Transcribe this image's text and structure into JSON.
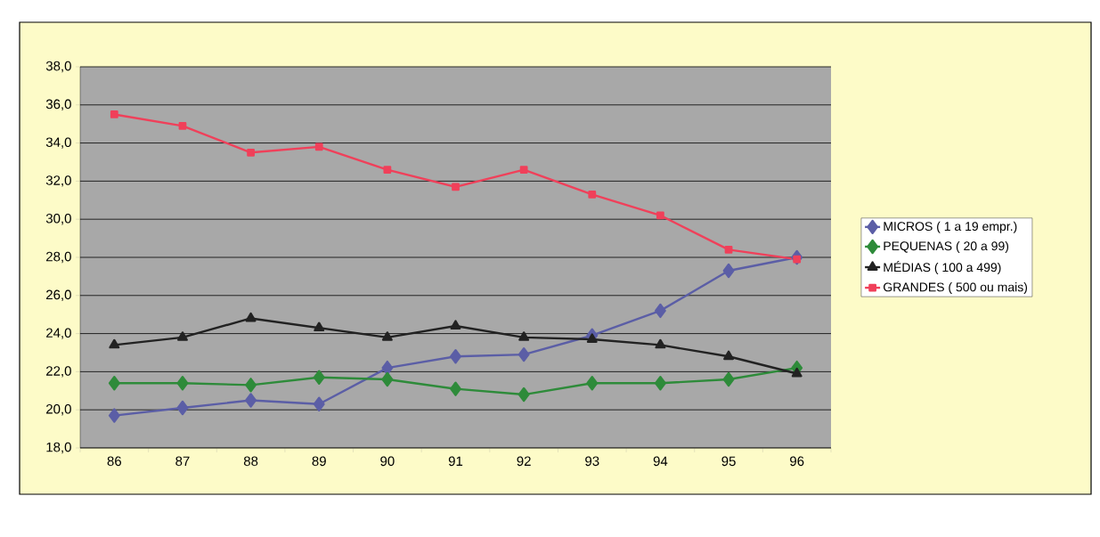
{
  "chart_data": {
    "type": "line",
    "categories": [
      "86",
      "87",
      "88",
      "89",
      "90",
      "91",
      "92",
      "93",
      "94",
      "95",
      "96"
    ],
    "series": [
      {
        "name": "MICROS ( 1 a 19 empr.)",
        "color": "#5b5ea6",
        "marker": "diamond",
        "values": [
          19.7,
          20.1,
          20.5,
          20.3,
          22.2,
          22.8,
          22.9,
          23.9,
          25.2,
          27.3,
          28.0
        ]
      },
      {
        "name": "PEQUENAS ( 20 a 99)",
        "color": "#2e8b3a",
        "marker": "diamond",
        "values": [
          21.4,
          21.4,
          21.3,
          21.7,
          21.6,
          21.1,
          20.8,
          21.4,
          21.4,
          21.6,
          22.2
        ]
      },
      {
        "name": "MÉDIAS ( 100 a 499)",
        "color": "#222222",
        "marker": "triangle",
        "values": [
          23.4,
          23.8,
          24.8,
          24.3,
          23.8,
          24.4,
          23.8,
          23.7,
          23.4,
          22.8,
          21.9
        ]
      },
      {
        "name": "GRANDES ( 500 ou mais)",
        "color": "#f0405a",
        "marker": "square",
        "values": [
          35.5,
          34.9,
          33.5,
          33.8,
          32.6,
          31.7,
          32.6,
          31.3,
          30.2,
          28.4,
          27.9
        ]
      }
    ],
    "ylim": [
      18,
      38
    ],
    "yticks": [
      {
        "value": 18,
        "label": "18,0"
      },
      {
        "value": 20,
        "label": "20,0"
      },
      {
        "value": 22,
        "label": "22,0"
      },
      {
        "value": 24,
        "label": "24,0"
      },
      {
        "value": 26,
        "label": "26,0"
      },
      {
        "value": 28,
        "label": "28,0"
      },
      {
        "value": 30,
        "label": "30,0"
      },
      {
        "value": 32,
        "label": "32,0"
      },
      {
        "value": 34,
        "label": "34,0"
      },
      {
        "value": 36,
        "label": "36,0"
      },
      {
        "value": 38,
        "label": "38,0"
      }
    ],
    "grid": "y",
    "legend": "right",
    "line_style": "solid"
  }
}
